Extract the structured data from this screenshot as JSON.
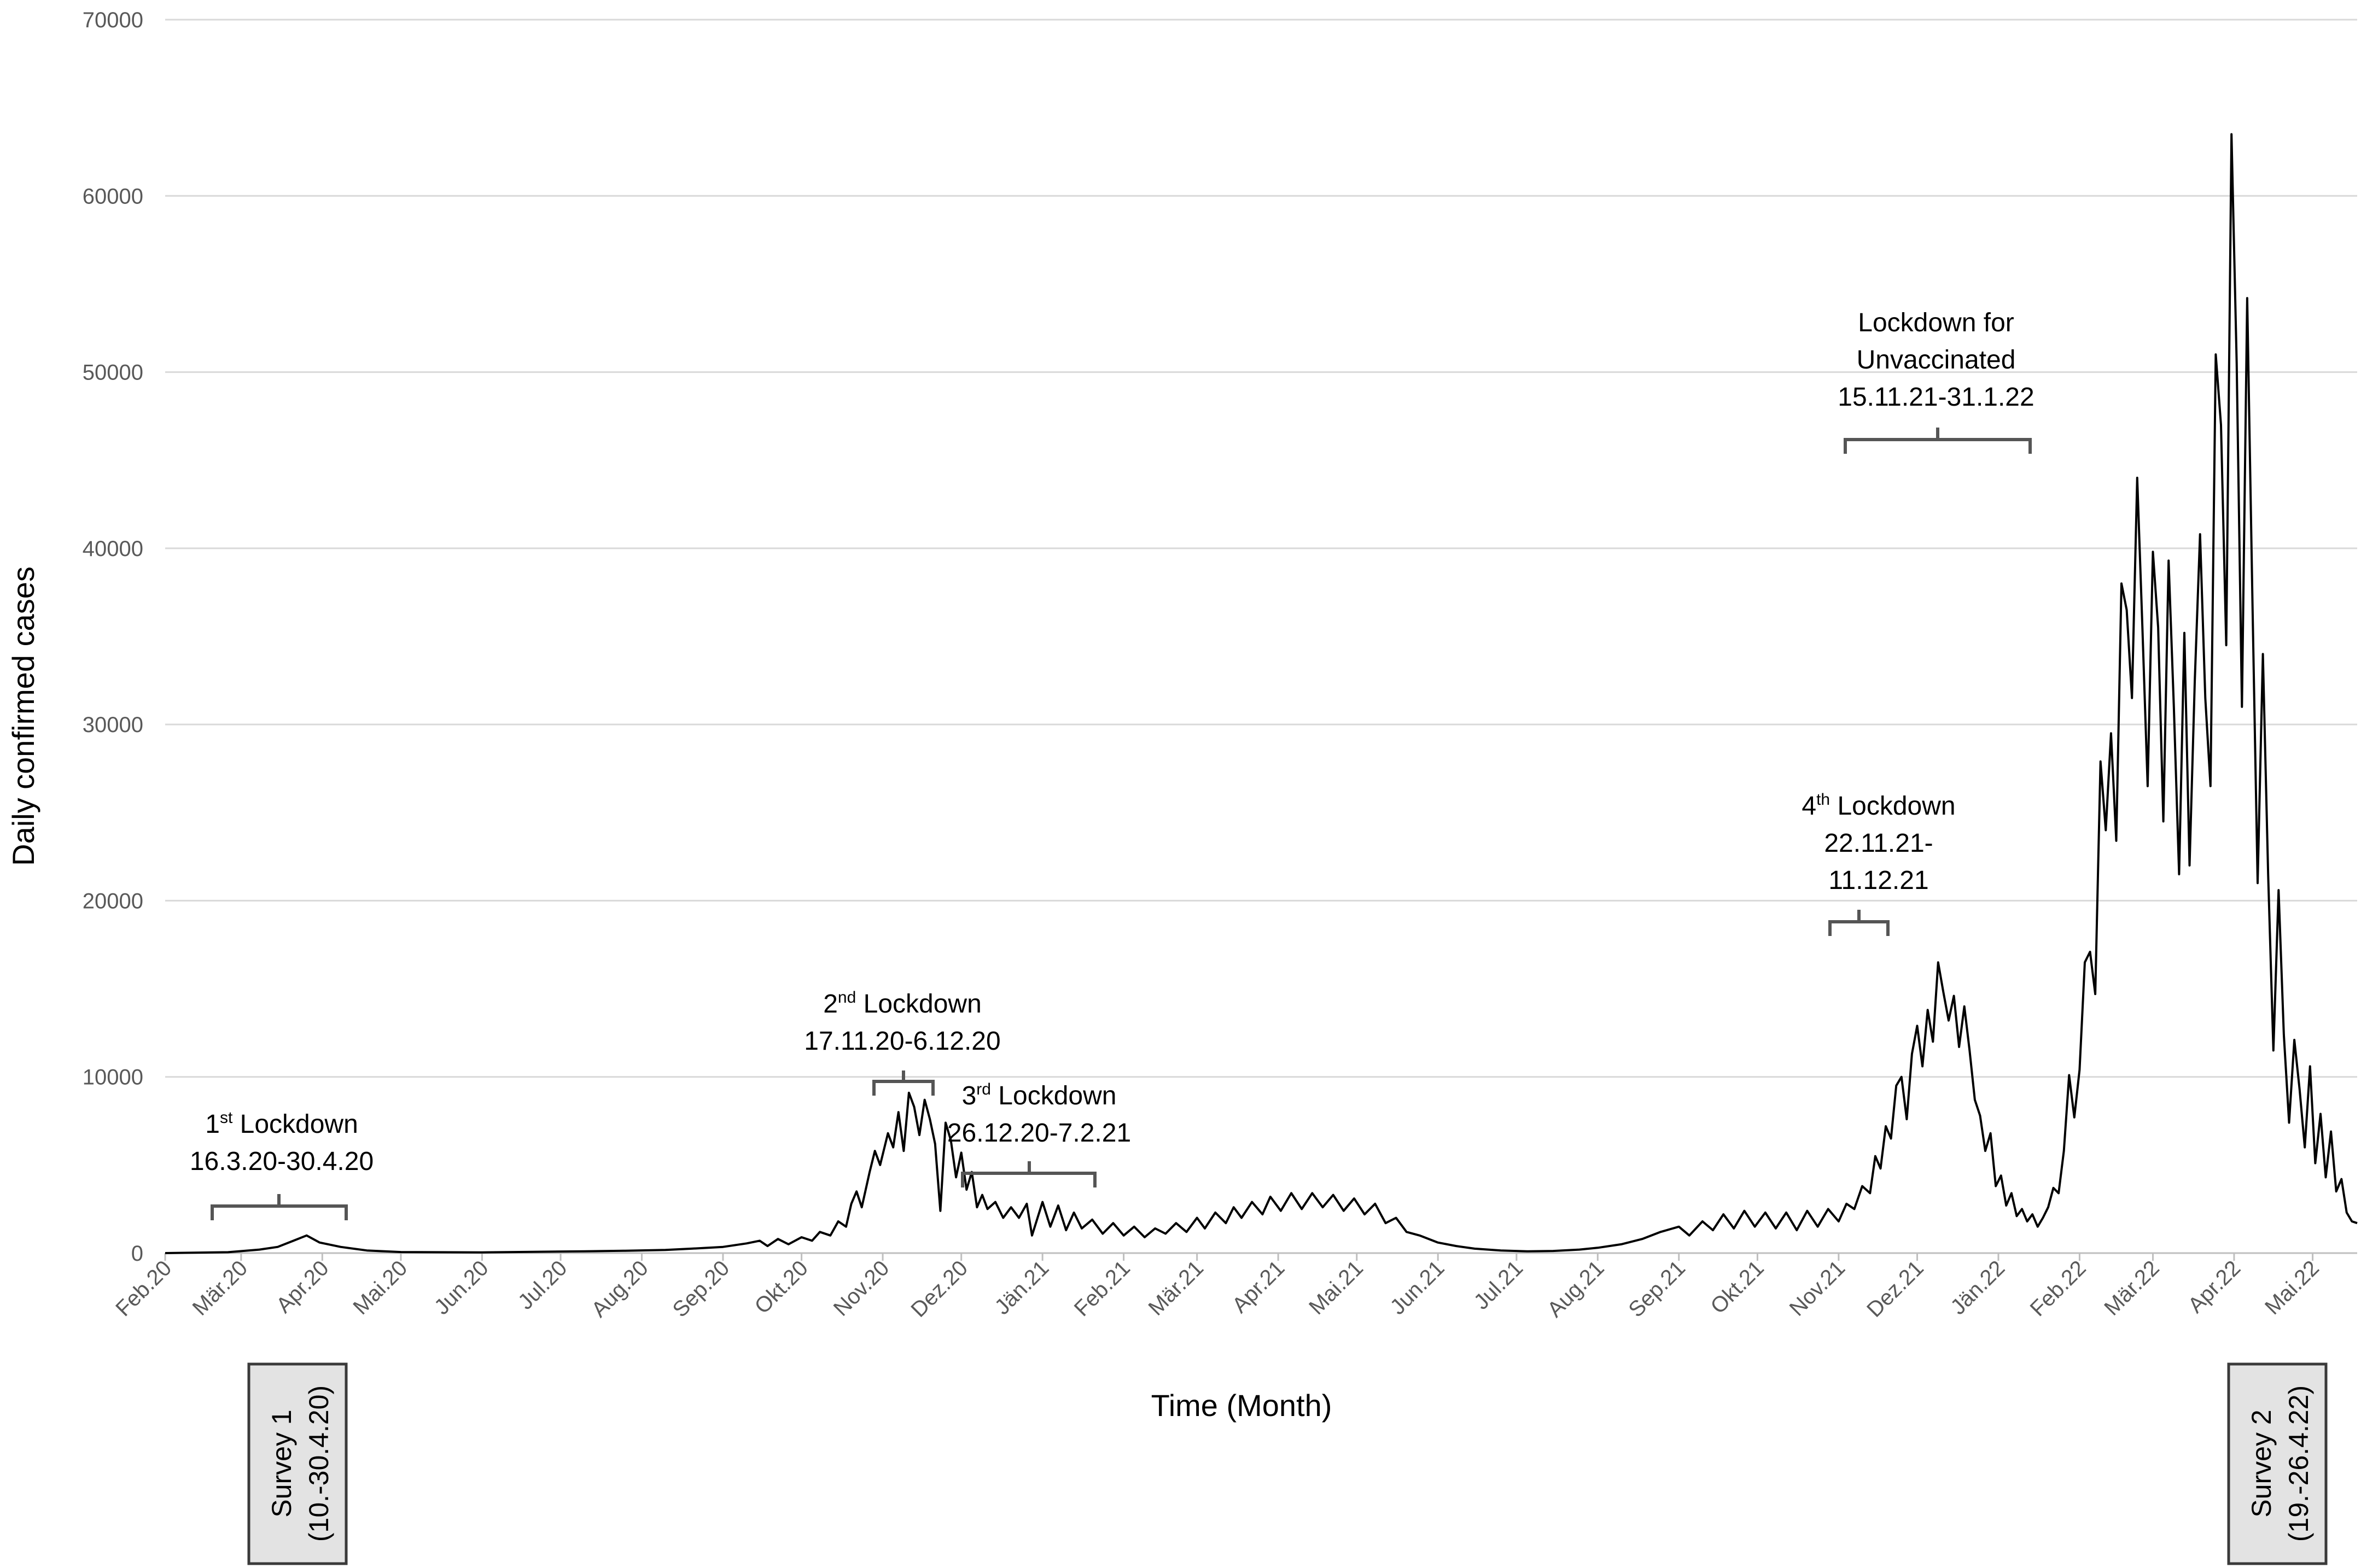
{
  "chart_data": {
    "type": "line",
    "xlabel": "Time (Month)",
    "ylabel": "Daily confirmed cases",
    "ylim": [
      0,
      70000
    ],
    "yticks": [
      0,
      10000,
      20000,
      30000,
      40000,
      50000,
      60000,
      70000
    ],
    "grid": true,
    "xrange": [
      "2020-02-01",
      "2022-05-18"
    ],
    "xticks": [
      {
        "date": "2020-02-01",
        "label": "Feb.20"
      },
      {
        "date": "2020-03-01",
        "label": "Mär.20"
      },
      {
        "date": "2020-04-01",
        "label": "Apr.20"
      },
      {
        "date": "2020-05-01",
        "label": "Mai.20"
      },
      {
        "date": "2020-06-01",
        "label": "Jun.20"
      },
      {
        "date": "2020-07-01",
        "label": "Jul.20"
      },
      {
        "date": "2020-08-01",
        "label": "Aug.20"
      },
      {
        "date": "2020-09-01",
        "label": "Sep.20"
      },
      {
        "date": "2020-10-01",
        "label": "Okt.20"
      },
      {
        "date": "2020-11-01",
        "label": "Nov.20"
      },
      {
        "date": "2020-12-01",
        "label": "Dez.20"
      },
      {
        "date": "2021-01-01",
        "label": "Jän.21"
      },
      {
        "date": "2021-02-01",
        "label": "Feb.21"
      },
      {
        "date": "2021-03-01",
        "label": "Mär.21"
      },
      {
        "date": "2021-04-01",
        "label": "Apr.21"
      },
      {
        "date": "2021-05-01",
        "label": "Mai.21"
      },
      {
        "date": "2021-06-01",
        "label": "Jun.21"
      },
      {
        "date": "2021-07-01",
        "label": "Jul.21"
      },
      {
        "date": "2021-08-01",
        "label": "Aug.21"
      },
      {
        "date": "2021-09-01",
        "label": "Sep.21"
      },
      {
        "date": "2021-10-01",
        "label": "Okt.21"
      },
      {
        "date": "2021-11-01",
        "label": "Nov.21"
      },
      {
        "date": "2021-12-01",
        "label": "Dez.21"
      },
      {
        "date": "2022-01-01",
        "label": "Jän.22"
      },
      {
        "date": "2022-02-01",
        "label": "Feb.22"
      },
      {
        "date": "2022-03-01",
        "label": "Mär.22"
      },
      {
        "date": "2022-04-01",
        "label": "Apr.22"
      },
      {
        "date": "2022-05-01",
        "label": "Mai.22"
      }
    ],
    "series": [
      {
        "color": "#000000",
        "points": [
          [
            "2020-02-01",
            0
          ],
          [
            "2020-02-25",
            50
          ],
          [
            "2020-03-08",
            200
          ],
          [
            "2020-03-15",
            350
          ],
          [
            "2020-03-21",
            700
          ],
          [
            "2020-03-26",
            1000
          ],
          [
            "2020-03-31",
            600
          ],
          [
            "2020-04-08",
            350
          ],
          [
            "2020-04-18",
            150
          ],
          [
            "2020-05-01",
            60
          ],
          [
            "2020-06-01",
            40
          ],
          [
            "2020-06-20",
            70
          ],
          [
            "2020-07-10",
            100
          ],
          [
            "2020-07-25",
            130
          ],
          [
            "2020-08-10",
            180
          ],
          [
            "2020-08-20",
            250
          ],
          [
            "2020-09-01",
            350
          ],
          [
            "2020-09-10",
            550
          ],
          [
            "2020-09-15",
            700
          ],
          [
            "2020-09-18",
            400
          ],
          [
            "2020-09-22",
            800
          ],
          [
            "2020-09-26",
            500
          ],
          [
            "2020-10-01",
            900
          ],
          [
            "2020-10-05",
            700
          ],
          [
            "2020-10-08",
            1200
          ],
          [
            "2020-10-12",
            1000
          ],
          [
            "2020-10-15",
            1800
          ],
          [
            "2020-10-18",
            1500
          ],
          [
            "2020-10-20",
            2800
          ],
          [
            "2020-10-22",
            3500
          ],
          [
            "2020-10-24",
            2600
          ],
          [
            "2020-10-27",
            4600
          ],
          [
            "2020-10-29",
            5800
          ],
          [
            "2020-10-31",
            5000
          ],
          [
            "2020-11-03",
            6800
          ],
          [
            "2020-11-05",
            6000
          ],
          [
            "2020-11-07",
            8000
          ],
          [
            "2020-11-09",
            5800
          ],
          [
            "2020-11-11",
            9100
          ],
          [
            "2020-11-13",
            8300
          ],
          [
            "2020-11-15",
            6700
          ],
          [
            "2020-11-17",
            8700
          ],
          [
            "2020-11-19",
            7600
          ],
          [
            "2020-11-21",
            6200
          ],
          [
            "2020-11-23",
            2400
          ],
          [
            "2020-11-25",
            7400
          ],
          [
            "2020-11-27",
            6400
          ],
          [
            "2020-11-29",
            4300
          ],
          [
            "2020-12-01",
            5700
          ],
          [
            "2020-12-03",
            3600
          ],
          [
            "2020-12-05",
            4600
          ],
          [
            "2020-12-07",
            2600
          ],
          [
            "2020-12-09",
            3300
          ],
          [
            "2020-12-11",
            2500
          ],
          [
            "2020-12-14",
            2900
          ],
          [
            "2020-12-17",
            2000
          ],
          [
            "2020-12-20",
            2600
          ],
          [
            "2020-12-23",
            2000
          ],
          [
            "2020-12-26",
            2800
          ],
          [
            "2020-12-28",
            1000
          ],
          [
            "2021-01-01",
            2900
          ],
          [
            "2021-01-04",
            1500
          ],
          [
            "2021-01-07",
            2700
          ],
          [
            "2021-01-10",
            1300
          ],
          [
            "2021-01-13",
            2300
          ],
          [
            "2021-01-16",
            1400
          ],
          [
            "2021-01-20",
            1900
          ],
          [
            "2021-01-24",
            1100
          ],
          [
            "2021-01-28",
            1700
          ],
          [
            "2021-02-01",
            1000
          ],
          [
            "2021-02-05",
            1500
          ],
          [
            "2021-02-09",
            900
          ],
          [
            "2021-02-13",
            1400
          ],
          [
            "2021-02-17",
            1100
          ],
          [
            "2021-02-21",
            1700
          ],
          [
            "2021-02-25",
            1200
          ],
          [
            "2021-03-01",
            2000
          ],
          [
            "2021-03-04",
            1400
          ],
          [
            "2021-03-08",
            2300
          ],
          [
            "2021-03-12",
            1700
          ],
          [
            "2021-03-15",
            2600
          ],
          [
            "2021-03-18",
            2000
          ],
          [
            "2021-03-22",
            2900
          ],
          [
            "2021-03-26",
            2200
          ],
          [
            "2021-03-29",
            3200
          ],
          [
            "2021-04-02",
            2400
          ],
          [
            "2021-04-06",
            3400
          ],
          [
            "2021-04-10",
            2500
          ],
          [
            "2021-04-14",
            3400
          ],
          [
            "2021-04-18",
            2600
          ],
          [
            "2021-04-22",
            3300
          ],
          [
            "2021-04-26",
            2400
          ],
          [
            "2021-04-30",
            3100
          ],
          [
            "2021-05-04",
            2200
          ],
          [
            "2021-05-08",
            2800
          ],
          [
            "2021-05-12",
            1700
          ],
          [
            "2021-05-16",
            2000
          ],
          [
            "2021-05-20",
            1200
          ],
          [
            "2021-05-25",
            1000
          ],
          [
            "2021-06-01",
            600
          ],
          [
            "2021-06-08",
            400
          ],
          [
            "2021-06-15",
            250
          ],
          [
            "2021-06-25",
            150
          ],
          [
            "2021-07-05",
            100
          ],
          [
            "2021-07-15",
            120
          ],
          [
            "2021-07-25",
            200
          ],
          [
            "2021-08-01",
            300
          ],
          [
            "2021-08-10",
            500
          ],
          [
            "2021-08-18",
            800
          ],
          [
            "2021-08-25",
            1200
          ],
          [
            "2021-09-01",
            1500
          ],
          [
            "2021-09-05",
            1000
          ],
          [
            "2021-09-10",
            1800
          ],
          [
            "2021-09-14",
            1300
          ],
          [
            "2021-09-18",
            2200
          ],
          [
            "2021-09-22",
            1400
          ],
          [
            "2021-09-26",
            2400
          ],
          [
            "2021-09-30",
            1500
          ],
          [
            "2021-10-04",
            2300
          ],
          [
            "2021-10-08",
            1400
          ],
          [
            "2021-10-12",
            2300
          ],
          [
            "2021-10-16",
            1300
          ],
          [
            "2021-10-20",
            2400
          ],
          [
            "2021-10-24",
            1500
          ],
          [
            "2021-10-28",
            2500
          ],
          [
            "2021-11-01",
            1800
          ],
          [
            "2021-11-04",
            2800
          ],
          [
            "2021-11-07",
            2500
          ],
          [
            "2021-11-10",
            3800
          ],
          [
            "2021-11-13",
            3400
          ],
          [
            "2021-11-15",
            5500
          ],
          [
            "2021-11-17",
            4800
          ],
          [
            "2021-11-19",
            7200
          ],
          [
            "2021-11-21",
            6500
          ],
          [
            "2021-11-23",
            9500
          ],
          [
            "2021-11-25",
            10000
          ],
          [
            "2021-11-27",
            7600
          ],
          [
            "2021-11-29",
            11300
          ],
          [
            "2021-12-01",
            12900
          ],
          [
            "2021-12-03",
            10600
          ],
          [
            "2021-12-05",
            13800
          ],
          [
            "2021-12-07",
            12000
          ],
          [
            "2021-12-09",
            16500
          ],
          [
            "2021-12-11",
            14800
          ],
          [
            "2021-12-13",
            13200
          ],
          [
            "2021-12-15",
            14600
          ],
          [
            "2021-12-17",
            11700
          ],
          [
            "2021-12-19",
            14000
          ],
          [
            "2021-12-21",
            11500
          ],
          [
            "2021-12-23",
            8700
          ],
          [
            "2021-12-25",
            7800
          ],
          [
            "2021-12-27",
            5800
          ],
          [
            "2021-12-29",
            6800
          ],
          [
            "2021-12-31",
            3800
          ],
          [
            "2022-01-02",
            4400
          ],
          [
            "2022-01-04",
            2700
          ],
          [
            "2022-01-06",
            3400
          ],
          [
            "2022-01-08",
            2100
          ],
          [
            "2022-01-10",
            2500
          ],
          [
            "2022-01-12",
            1800
          ],
          [
            "2022-01-14",
            2200
          ],
          [
            "2022-01-16",
            1500
          ],
          [
            "2022-01-18",
            2000
          ],
          [
            "2022-01-20",
            2600
          ],
          [
            "2022-01-22",
            3700
          ],
          [
            "2022-01-24",
            3400
          ],
          [
            "2022-01-26",
            5800
          ],
          [
            "2022-01-28",
            10100
          ],
          [
            "2022-01-30",
            7700
          ],
          [
            "2022-02-01",
            10400
          ],
          [
            "2022-02-03",
            16500
          ],
          [
            "2022-02-05",
            17100
          ],
          [
            "2022-02-07",
            14700
          ],
          [
            "2022-02-09",
            27900
          ],
          [
            "2022-02-11",
            24000
          ],
          [
            "2022-02-13",
            29500
          ],
          [
            "2022-02-15",
            23400
          ],
          [
            "2022-02-17",
            38000
          ],
          [
            "2022-02-19",
            36500
          ],
          [
            "2022-02-21",
            31500
          ],
          [
            "2022-02-23",
            44000
          ],
          [
            "2022-02-25",
            35500
          ],
          [
            "2022-02-27",
            26500
          ],
          [
            "2022-03-01",
            39800
          ],
          [
            "2022-03-03",
            35500
          ],
          [
            "2022-03-05",
            24500
          ],
          [
            "2022-03-07",
            39300
          ],
          [
            "2022-03-09",
            31000
          ],
          [
            "2022-03-11",
            21500
          ],
          [
            "2022-03-13",
            35200
          ],
          [
            "2022-03-15",
            22000
          ],
          [
            "2022-03-17",
            32500
          ],
          [
            "2022-03-19",
            40800
          ],
          [
            "2022-03-21",
            31500
          ],
          [
            "2022-03-23",
            26500
          ],
          [
            "2022-03-25",
            51000
          ],
          [
            "2022-03-27",
            47000
          ],
          [
            "2022-03-29",
            34500
          ],
          [
            "2022-03-31",
            63500
          ],
          [
            "2022-04-02",
            50500
          ],
          [
            "2022-04-04",
            31000
          ],
          [
            "2022-04-06",
            54200
          ],
          [
            "2022-04-08",
            37000
          ],
          [
            "2022-04-10",
            21000
          ],
          [
            "2022-04-12",
            34000
          ],
          [
            "2022-04-14",
            21500
          ],
          [
            "2022-04-16",
            11500
          ],
          [
            "2022-04-18",
            20600
          ],
          [
            "2022-04-20",
            12400
          ],
          [
            "2022-04-22",
            7400
          ],
          [
            "2022-04-24",
            12100
          ],
          [
            "2022-04-26",
            9300
          ],
          [
            "2022-04-28",
            6000
          ],
          [
            "2022-04-30",
            10600
          ],
          [
            "2022-05-02",
            5100
          ],
          [
            "2022-05-04",
            7900
          ],
          [
            "2022-05-06",
            4300
          ],
          [
            "2022-05-08",
            6900
          ],
          [
            "2022-05-10",
            3500
          ],
          [
            "2022-05-12",
            4200
          ],
          [
            "2022-05-14",
            2300
          ],
          [
            "2022-05-16",
            1800
          ],
          [
            "2022-05-18",
            1700
          ]
        ]
      }
    ],
    "annotations": [
      {
        "id": "lockdown1",
        "label": "Lockdown",
        "ordinal": "1",
        "ordinal_suffix": "st",
        "dates": "16.3.20-30.4.20",
        "start": "2020-03-16",
        "end": "2020-04-30"
      },
      {
        "id": "lockdown2",
        "label": "Lockdown",
        "ordinal": "2",
        "ordinal_suffix": "nd",
        "dates": "17.11.20-6.12.20",
        "start": "2020-11-17",
        "end": "2020-12-06"
      },
      {
        "id": "lockdown3",
        "label": "Lockdown",
        "ordinal": "3",
        "ordinal_suffix": "rd",
        "dates": "26.12.20-7.2.21",
        "start": "2020-12-26",
        "end": "2021-02-07"
      },
      {
        "id": "lockdown4",
        "label": "Lockdown",
        "ordinal": "4",
        "ordinal_suffix": "th",
        "dates_line1": "22.11.21-",
        "dates_line2": "11.12.21",
        "start": "2021-11-22",
        "end": "2021-12-11"
      },
      {
        "id": "lockdown-unvacc",
        "line1": "Lockdown for",
        "line2": "Unvaccinated",
        "dates": "15.11.21-31.1.22",
        "start": "2021-11-15",
        "end": "2022-01-31"
      }
    ],
    "surveys": [
      {
        "line1": "Survey 1",
        "line2": "(10.-30.4.20)"
      },
      {
        "line1": "Survey 2",
        "line2": "(19.-26.4.22)"
      }
    ]
  }
}
